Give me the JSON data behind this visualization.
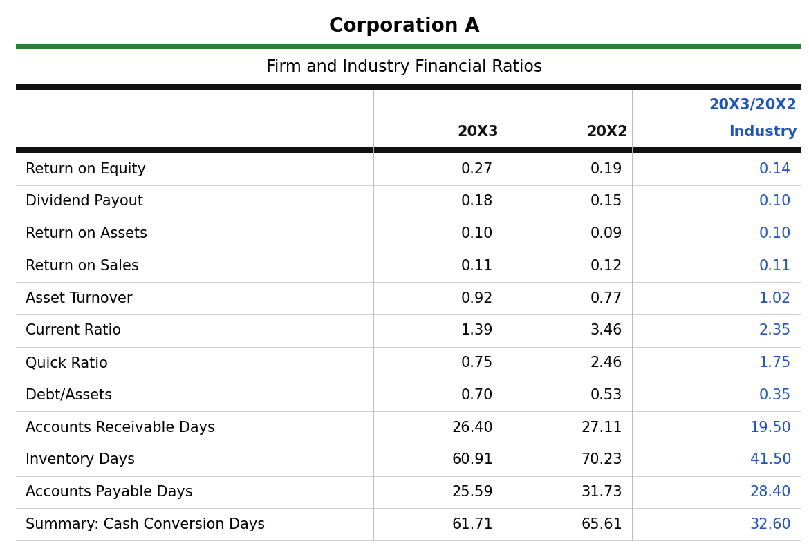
{
  "title": "Corporation A",
  "subtitle": "Firm and Industry Financial Ratios",
  "col_headers_line1": [
    "",
    "",
    "",
    "20X3/20X2"
  ],
  "col_headers_line2": [
    "",
    "20X3",
    "20X2",
    "Industry"
  ],
  "rows": [
    [
      "Return on Equity",
      "0.27",
      "0.19",
      "0.14"
    ],
    [
      "Dividend Payout",
      "0.18",
      "0.15",
      "0.10"
    ],
    [
      "Return on Assets",
      "0.10",
      "0.09",
      "0.10"
    ],
    [
      "Return on Sales",
      "0.11",
      "0.12",
      "0.11"
    ],
    [
      "Asset Turnover",
      "0.92",
      "0.77",
      "1.02"
    ],
    [
      "Current Ratio",
      "1.39",
      "3.46",
      "2.35"
    ],
    [
      "Quick Ratio",
      "0.75",
      "2.46",
      "1.75"
    ],
    [
      "Debt/Assets",
      "0.70",
      "0.53",
      "0.35"
    ],
    [
      "Accounts Receivable Days",
      "26.40",
      "27.11",
      "19.50"
    ],
    [
      "Inventory Days",
      "60.91",
      "70.23",
      "41.50"
    ],
    [
      "Accounts Payable Days",
      "25.59",
      "31.73",
      "28.40"
    ],
    [
      "Summary: Cash Conversion Days",
      "61.71",
      "65.61",
      "32.60"
    ]
  ],
  "title_color": "#000000",
  "subtitle_color": "#000000",
  "header_col3_color": "#2255BB",
  "data_col0_color": "#000000",
  "data_col1_color": "#000000",
  "data_col2_color": "#000000",
  "data_col3_color": "#2255BB",
  "green_line_color": "#2E7D32",
  "dark_line_color": "#111111",
  "light_line_color": "#BBBBBB",
  "bg_color": "#FFFFFF",
  "title_fontsize": 20,
  "subtitle_fontsize": 17,
  "header_fontsize": 15,
  "data_fontsize": 15,
  "figsize": [
    11.7,
    7.9
  ],
  "dpi": 100
}
